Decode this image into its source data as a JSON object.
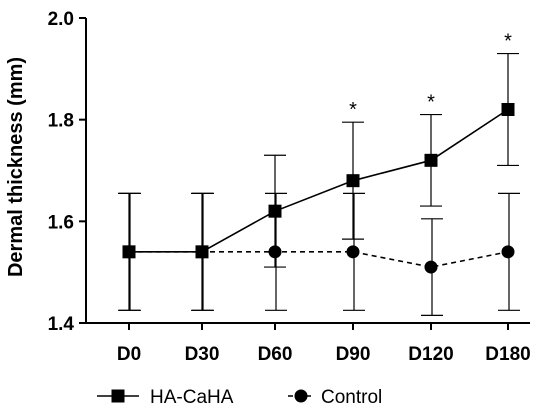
{
  "chart_data": {
    "type": "line",
    "categories": [
      "D0",
      "D30",
      "D60",
      "D90",
      "D120",
      "D180"
    ],
    "ylabel": "Dermal thickness (mm)",
    "xlabel": "",
    "ylim": [
      1.4,
      2.0
    ],
    "yticks": [
      "1.4",
      "1.6",
      "1.8",
      "2.0"
    ],
    "grid": false,
    "legend_position": "bottom",
    "series": [
      {
        "name": "HA-CaHA",
        "marker": "square",
        "line_style": "solid",
        "color": "#000000",
        "values": [
          1.54,
          1.54,
          1.62,
          1.68,
          1.72,
          1.82
        ],
        "error": [
          0.115,
          0.115,
          0.11,
          0.115,
          0.09,
          0.11
        ]
      },
      {
        "name": "Control",
        "marker": "circle",
        "line_style": "dashed",
        "color": "#000000",
        "values": [
          1.54,
          1.54,
          1.54,
          1.54,
          1.51,
          1.54
        ],
        "error": [
          0.115,
          0.115,
          0.115,
          0.115,
          0.095,
          0.115
        ]
      }
    ],
    "annotations": [
      {
        "category": "D90",
        "text": "*"
      },
      {
        "category": "D120",
        "text": "*"
      },
      {
        "category": "D180",
        "text": "*"
      }
    ]
  }
}
